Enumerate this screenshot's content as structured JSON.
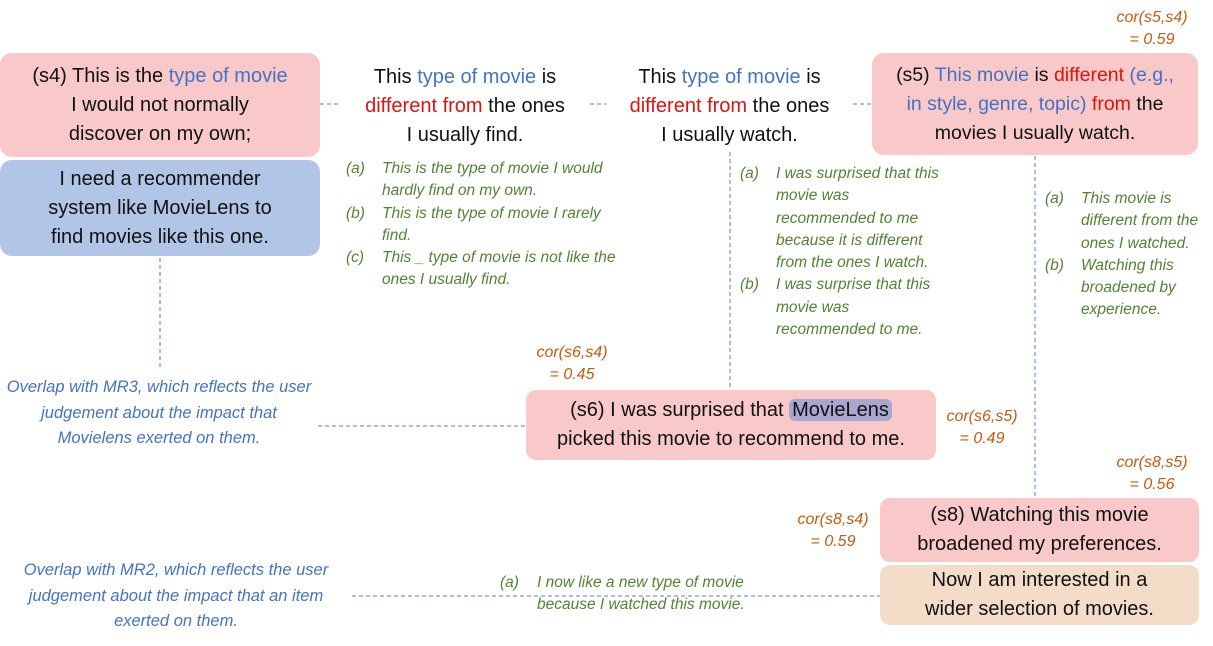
{
  "s4": {
    "label": "(s4)",
    "t1": "This is the",
    "t2": "type of movie",
    "t3": "I would not normally",
    "t4": "discover on my own;"
  },
  "s4_need": {
    "l1": "I need a recommender",
    "l2": "system like MovieLens to",
    "l3": "find movies like this one."
  },
  "mid1": {
    "t1": "This",
    "t2": "type of movie",
    "t3": "is",
    "t4": "different from",
    "t5": "the ones",
    "t6": "I usually find."
  },
  "mid2": {
    "t1": "This",
    "t2": "type of movie",
    "t3": "is",
    "t4": "different from",
    "t5": "the ones",
    "t6": "I usually watch."
  },
  "s5": {
    "label": "(s5)",
    "t1": "This movie",
    "t2": "is",
    "t3": "different",
    "t4": "(e.g.,",
    "t5": "in style, genre, topic)",
    "t6": "from",
    "t7": "the",
    "t8": "movies I usually watch."
  },
  "s6": {
    "label": "(s6)",
    "t1": "I was surprised that",
    "t2": "MovieLens",
    "t3": "picked this movie to recommend to me."
  },
  "s8": {
    "label": "(s8)",
    "t1": "Watching this movie",
    "t2": "broadened my preferences."
  },
  "s8_interest": {
    "l1": "Now I am interested in a",
    "l2": "wider selection of movies."
  },
  "correlations": {
    "s5_s4": {
      "label": "cor(s5,s4)",
      "value": "= 0.59"
    },
    "s6_s4": {
      "label": "cor(s6,s4)",
      "value": "= 0.45"
    },
    "s6_s5": {
      "label": "cor(s6,s5)",
      "value": "= 0.49"
    },
    "s8_s5": {
      "label": "cor(s8,s5)",
      "value": "= 0.56"
    },
    "s8_s4": {
      "label": "cor(s8,s4)",
      "value": "= 0.59"
    }
  },
  "items_find": [
    {
      "label": "(a)",
      "text": "This is the type of movie I would hardly find on my own."
    },
    {
      "label": "(b)",
      "text": "This is the type of movie I rarely find."
    },
    {
      "label": "(c)",
      "text": "This _ type of movie is not like the ones I usually find."
    }
  ],
  "items_watch": [
    {
      "label": "(a)",
      "text": "I was surprised that this movie was recommended to me because it is different from the ones I watch."
    },
    {
      "label": "(b)",
      "text": "I was surprise that this movie was recommended to me."
    }
  ],
  "items_s5": [
    {
      "label": "(a)",
      "text": "This movie is different from the ones I watched."
    },
    {
      "label": "(b)",
      "text": "Watching this broadened by experience."
    }
  ],
  "items_s8": [
    {
      "label": "(a)",
      "text": "I now like a new type of movie because I watched this movie."
    }
  ],
  "notes": {
    "mr3": "Overlap with MR3, which reflects the user judgement about the impact that Movielens exerted on them.",
    "mr2": "Overlap with MR2, which reflects the user judgement about the impact that an item exerted on them."
  },
  "colors": {
    "pink": "#f8c9c8",
    "blue": "#b1c5e6",
    "peach": "#f3ddc9",
    "accent_blue": "#4472c4",
    "accent_red": "#e0120d",
    "item_green": "#548235",
    "corr_orange": "#c55a11",
    "highlight": "#a9a6cf"
  }
}
